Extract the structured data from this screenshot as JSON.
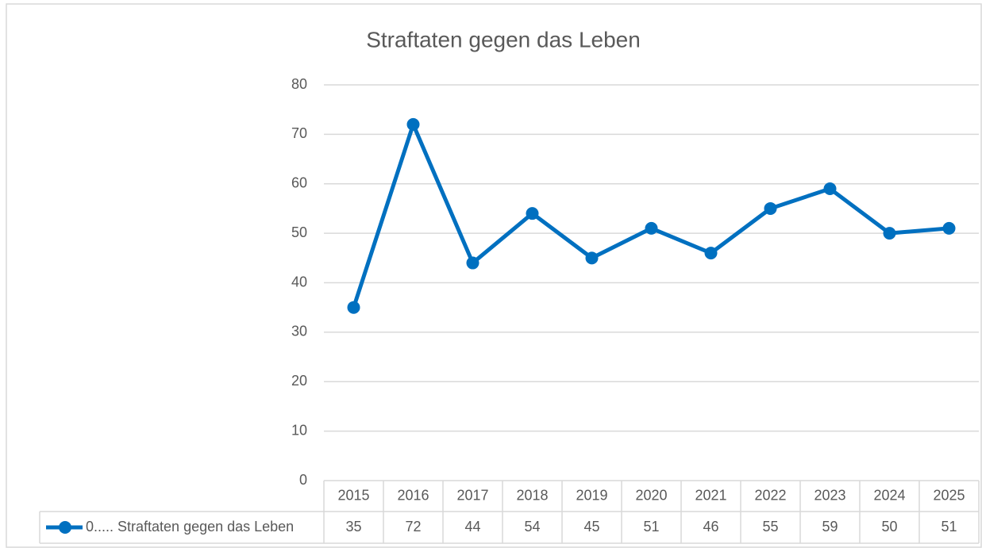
{
  "chart_data": {
    "type": "line",
    "title": "Straftaten gegen das Leben",
    "categories": [
      "2015",
      "2016",
      "2017",
      "2018",
      "2019",
      "2020",
      "2021",
      "2022",
      "2023",
      "2024",
      "2025"
    ],
    "series": [
      {
        "name": "0..... Straftaten gegen das Leben",
        "color": "#0070c0",
        "values": [
          35,
          72,
          44,
          54,
          45,
          51,
          46,
          55,
          59,
          50,
          51
        ]
      }
    ],
    "ylim": [
      0,
      80
    ],
    "yticks": [
      0,
      10,
      20,
      30,
      40,
      50,
      60,
      70,
      80
    ],
    "grid": true,
    "data_table": true
  }
}
